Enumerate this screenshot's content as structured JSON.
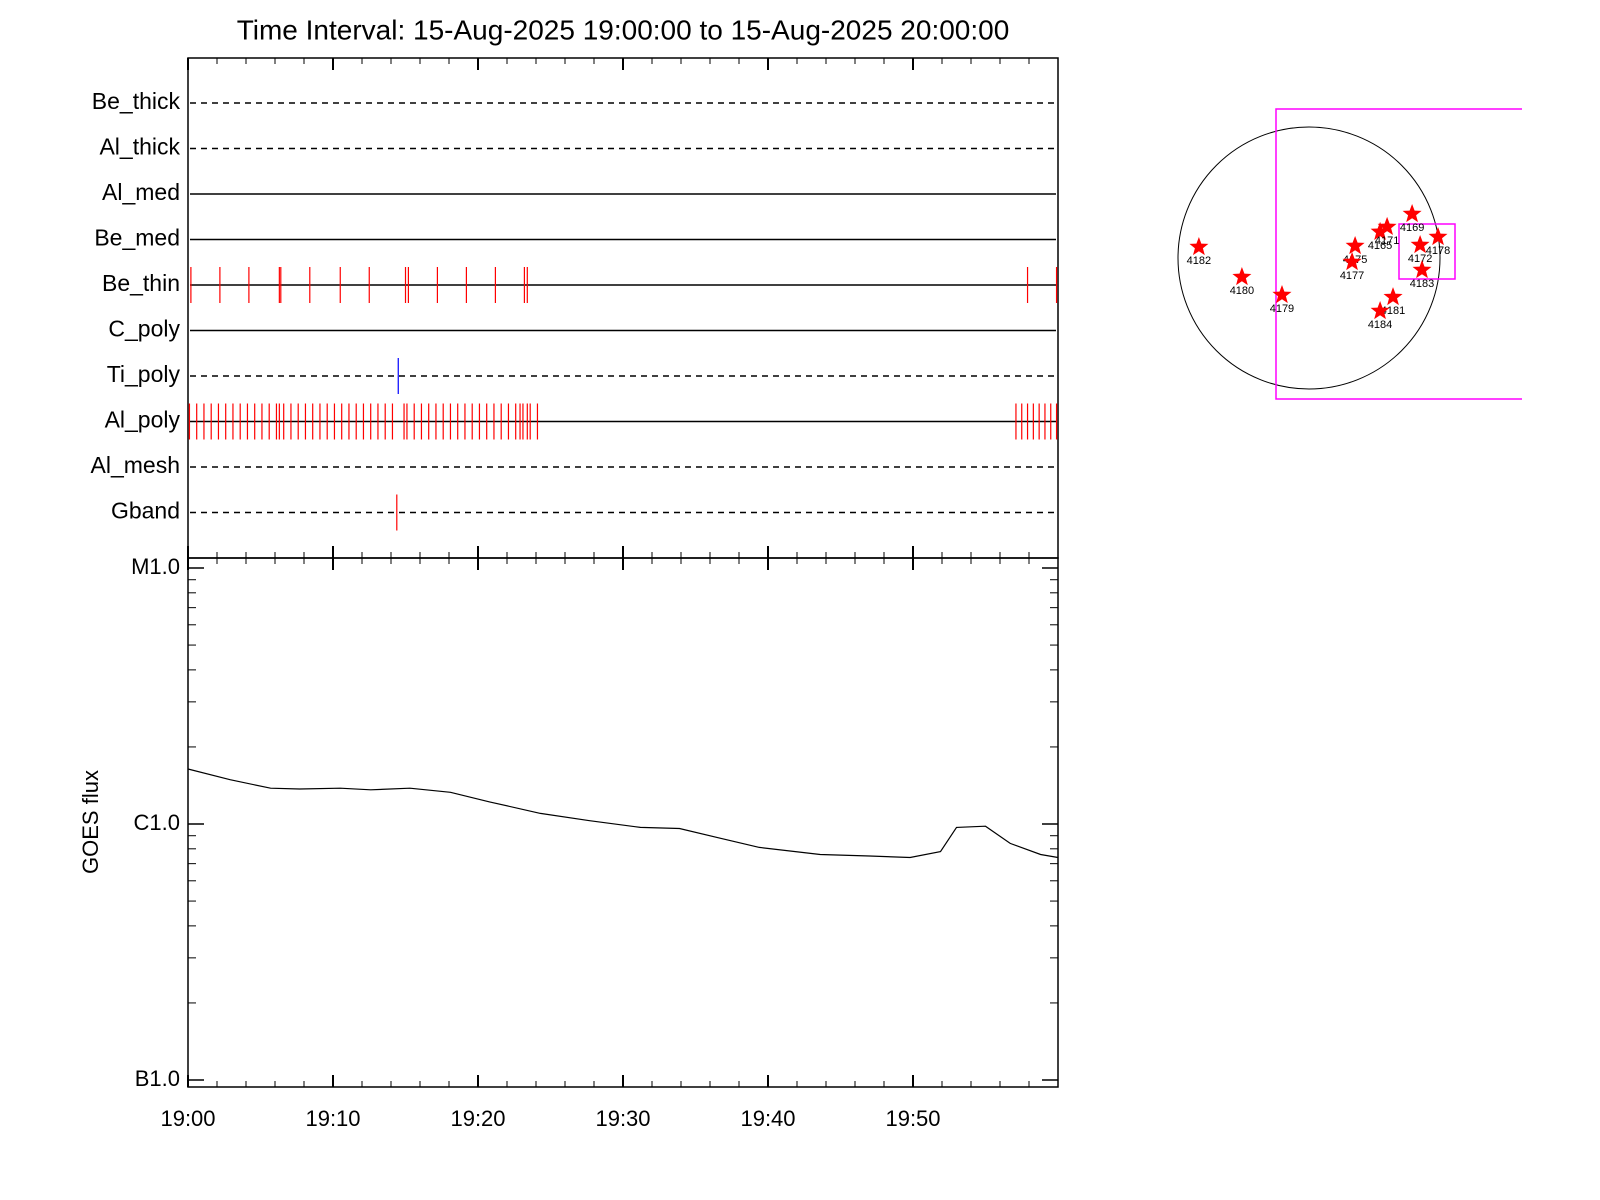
{
  "chart_data": [
    {
      "type": "event",
      "title": "Time Interval: 15-Aug-2025 19:00:00 to 15-Aug-2025 20:00:00",
      "rows": [
        {
          "name": "Be_thick",
          "style": "dashed",
          "color": "#ff0000",
          "events": []
        },
        {
          "name": "Al_thick",
          "style": "dashed",
          "color": "#ff0000",
          "events": []
        },
        {
          "name": "Al_med",
          "style": "solid",
          "color": "#ff0000",
          "events": []
        },
        {
          "name": "Be_med",
          "style": "solid",
          "color": "#ff0000",
          "events": []
        },
        {
          "name": "Be_thin",
          "style": "solid",
          "color": "#ff0000",
          "events": [
            0.2,
            2.2,
            4.2,
            6.3,
            6.4,
            8.4,
            10.5,
            12.5,
            15.0,
            15.2,
            17.2,
            19.2,
            21.2,
            23.2,
            23.4,
            57.9,
            59.9
          ]
        },
        {
          "name": "C_poly",
          "style": "solid",
          "color": "#ff0000",
          "events": []
        },
        {
          "name": "Ti_poly",
          "style": "dashed",
          "color": "#0000ff",
          "events": [
            14.5
          ]
        },
        {
          "name": "Al_poly",
          "style": "solid",
          "color": "#ff0000",
          "events": [
            0.1,
            0.6,
            1.1,
            1.6,
            2.1,
            2.6,
            3.1,
            3.6,
            4.1,
            4.6,
            5.1,
            5.6,
            6.1,
            6.3,
            6.6,
            7.1,
            7.6,
            8.1,
            8.6,
            9.1,
            9.6,
            10.1,
            10.6,
            11.1,
            11.6,
            12.1,
            12.6,
            13.1,
            13.6,
            14.1,
            14.9,
            15.1,
            15.6,
            16.1,
            16.6,
            17.1,
            17.6,
            18.1,
            18.6,
            19.1,
            19.6,
            20.1,
            20.6,
            21.1,
            21.6,
            22.1,
            22.6,
            22.9,
            23.1,
            23.4,
            23.6,
            24.1,
            57.1,
            57.5,
            57.9,
            58.3,
            58.7,
            59.1,
            59.5,
            59.9
          ]
        },
        {
          "name": "Al_mesh",
          "style": "dashed",
          "color": "#ff0000",
          "events": []
        },
        {
          "name": "Gband",
          "style": "dashed",
          "color": "#ff0000",
          "events": [
            14.4
          ]
        }
      ]
    },
    {
      "type": "line",
      "ylabel": "GOES flux",
      "log_scale": true,
      "color": "#000000",
      "xlim": [
        0,
        60
      ],
      "xticks": [
        {
          "value": 0,
          "label": "19:00"
        },
        {
          "value": 10,
          "label": "19:10"
        },
        {
          "value": 20,
          "label": "19:20"
        },
        {
          "value": 30,
          "label": "19:30"
        },
        {
          "value": 40,
          "label": "19:40"
        },
        {
          "value": 50,
          "label": "19:50"
        }
      ],
      "ylim": [
        1e-07,
        1e-05
      ],
      "yticks": [
        {
          "value": 1e-07,
          "label": "B1.0"
        },
        {
          "value": 1e-06,
          "label": "C1.0"
        },
        {
          "value": 1e-05,
          "label": "M1.0"
        }
      ],
      "x": [
        0,
        2.9,
        5.7,
        7.7,
        10.5,
        12.6,
        15.3,
        18.1,
        20.8,
        24.3,
        27.7,
        31.2,
        33.9,
        36.7,
        39.4,
        43.6,
        47.0,
        49.8,
        51.9,
        53.0,
        55.0,
        56.7,
        58.8,
        60
      ],
      "values": [
        1.64e-06,
        1.49e-06,
        1.38e-06,
        1.37e-06,
        1.38e-06,
        1.36e-06,
        1.38e-06,
        1.33e-06,
        1.22e-06,
        1.1e-06,
        1.03e-06,
        9.7e-07,
        9.6e-07,
        8.8e-07,
        8.1e-07,
        7.6e-07,
        7.5e-07,
        7.4e-07,
        7.8e-07,
        9.7e-07,
        9.8e-07,
        8.4e-07,
        7.6e-07,
        7.4e-07
      ]
    },
    {
      "type": "scatter",
      "color": "#ff0000",
      "xlim": [
        -1000,
        1000
      ],
      "ylim": [
        -1000,
        1000
      ],
      "categories": [
        "4182",
        "4180",
        "4179",
        "4175",
        "4177",
        "4165",
        "4171",
        "4169",
        "4172",
        "4178",
        "4183",
        "4181",
        "4184"
      ],
      "x": [
        -798,
        -486,
        -196,
        334,
        312,
        515,
        566,
        747,
        805,
        935,
        819,
        609,
        515
      ],
      "values": [
        80,
        -138,
        -268,
        87,
        -29,
        189,
        225,
        319,
        94,
        152,
        -87,
        -283,
        -384
      ]
    }
  ]
}
